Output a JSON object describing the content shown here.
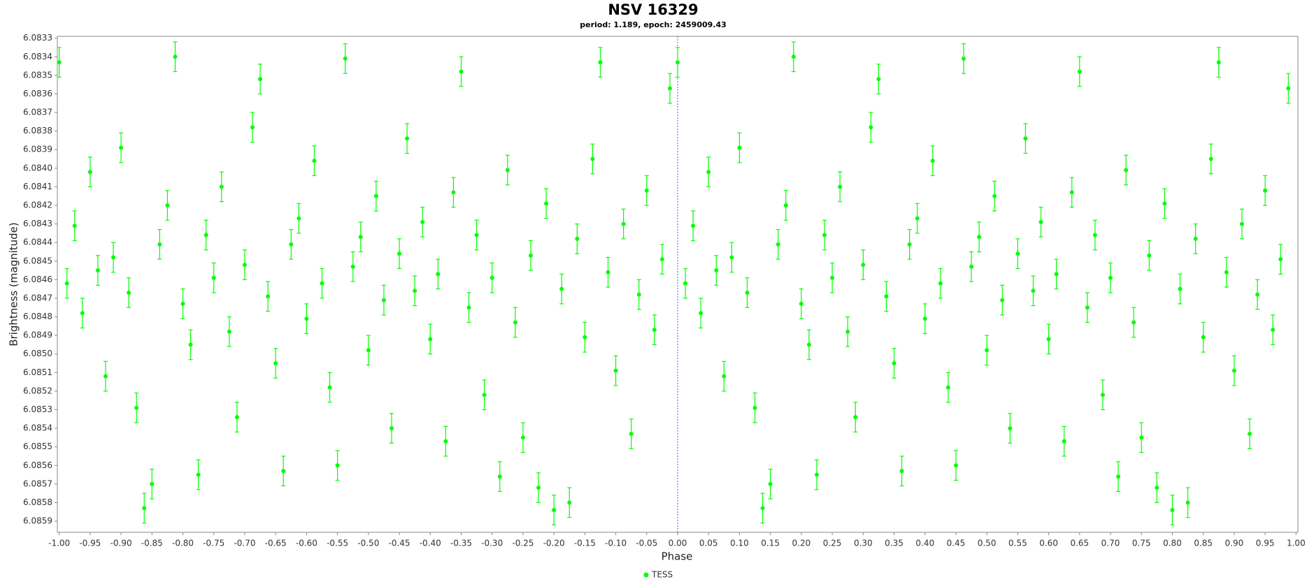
{
  "chart_data": {
    "type": "scatter",
    "title": "NSV 16329",
    "subtitle": "period: 1.189, epoch: 2459009.43",
    "x_label": "Phase",
    "y_label": "Brightness (magnitude)",
    "xlim": [
      -1.003,
      1.003
    ],
    "ylim": [
      6.08329,
      6.08596
    ],
    "y_inverted": true,
    "grid": false,
    "legend": "bottom",
    "reference_line_x": 0,
    "xticks": [
      {
        "value": -1,
        "label": "-1.00"
      },
      -0.95,
      {
        "value": -0.9,
        "label": "-0.90"
      },
      -0.85,
      {
        "value": -0.8,
        "label": "-0.80"
      },
      -0.75,
      {
        "value": -0.7,
        "label": "-0.70"
      },
      -0.65,
      {
        "value": -0.6,
        "label": "-0.60"
      },
      -0.55,
      {
        "value": -0.5,
        "label": "-0.50"
      },
      -0.45,
      {
        "value": -0.4,
        "label": "-0.40"
      },
      -0.35,
      {
        "value": -0.3,
        "label": "-0.30"
      },
      -0.25,
      {
        "value": -0.2,
        "label": "-0.20"
      },
      -0.15,
      {
        "value": -0.1,
        "label": "-0.10"
      },
      -0.05,
      {
        "value": 0,
        "label": "0.00"
      },
      0.05,
      {
        "value": 0.1,
        "label": "0.10"
      },
      0.15,
      {
        "value": 0.2,
        "label": "0.20"
      },
      0.25,
      {
        "value": 0.3,
        "label": "0.30"
      },
      0.35,
      {
        "value": 0.4,
        "label": "0.40"
      },
      0.45,
      {
        "value": 0.5,
        "label": "0.50"
      },
      0.55,
      {
        "value": 0.6,
        "label": "0.60"
      },
      0.65,
      {
        "value": 0.7,
        "label": "0.70"
      },
      0.75,
      {
        "value": 0.8,
        "label": "0.80"
      },
      0.85,
      {
        "value": 0.9,
        "label": "0.90"
      },
      0.95,
      {
        "value": 1,
        "label": "1.00"
      }
    ],
    "yticks": [
      6.0833,
      6.0834,
      6.0835,
      6.0836,
      6.0837,
      6.0838,
      6.0839,
      {
        "value": 6.084,
        "label": "6.0840"
      },
      6.0841,
      6.0842,
      6.0843,
      6.0844,
      6.0845,
      6.0846,
      6.0847,
      6.0848,
      6.0849,
      {
        "value": 6.085,
        "label": "6.0850"
      },
      6.0851,
      6.0852,
      6.0853,
      6.0854,
      6.0855,
      6.0856,
      6.0857,
      6.0858,
      6.0859
    ],
    "series": [
      {
        "name": "TESS",
        "color": "#00ff00",
        "error": 8e-05,
        "x": [
          -1,
          -0.9875,
          -0.975,
          -0.9625,
          -0.95,
          -0.9375,
          -0.925,
          -0.9125,
          -0.9,
          -0.8875,
          -0.875,
          -0.8625,
          -0.85,
          -0.8375,
          -0.825,
          -0.8125,
          -0.8,
          -0.7875,
          -0.775,
          -0.7625,
          -0.75,
          -0.7375,
          -0.725,
          -0.7125,
          -0.7,
          -0.6875,
          -0.675,
          -0.6625,
          -0.65,
          -0.6375,
          -0.625,
          -0.6125,
          -0.6,
          -0.5875,
          -0.575,
          -0.5625,
          -0.55,
          -0.5375,
          -0.525,
          -0.5125,
          -0.5,
          -0.4875,
          -0.475,
          -0.4625,
          -0.45,
          -0.4375,
          -0.425,
          -0.4125,
          -0.4,
          -0.3875,
          -0.375,
          -0.3625,
          -0.35,
          -0.3375,
          -0.325,
          -0.3125,
          -0.3,
          -0.2875,
          -0.275,
          -0.2625,
          -0.25,
          -0.2375,
          -0.225,
          -0.2125,
          -0.2,
          -0.1875,
          -0.175,
          -0.1625,
          -0.15,
          -0.1375,
          -0.125,
          -0.1125,
          -0.1,
          -0.0875,
          -0.075,
          -0.0625,
          -0.05,
          -0.0375,
          -0.025,
          -0.0125,
          0,
          0.0125,
          0.025,
          0.0375,
          0.05,
          0.0625,
          0.075,
          0.0875,
          0.1,
          0.1125,
          0.125,
          0.1375,
          0.15,
          0.1625,
          0.175,
          0.1875,
          0.2,
          0.2125,
          0.225,
          0.2375,
          0.25,
          0.2625,
          0.275,
          0.2875,
          0.3,
          0.3125,
          0.325,
          0.3375,
          0.35,
          0.3625,
          0.375,
          0.3875,
          0.4,
          0.4125,
          0.425,
          0.4375,
          0.45,
          0.4625,
          0.475,
          0.4875,
          0.5,
          0.5125,
          0.525,
          0.5375,
          0.55,
          0.5625,
          0.575,
          0.5875,
          0.6,
          0.6125,
          0.625,
          0.6375,
          0.65,
          0.6625,
          0.675,
          0.6875,
          0.7,
          0.7125,
          0.725,
          0.7375,
          0.75,
          0.7625,
          0.775,
          0.7875,
          0.8,
          0.8125,
          0.825,
          0.8375,
          0.85,
          0.8625,
          0.875,
          0.8875,
          0.9,
          0.9125,
          0.925,
          0.9375,
          0.95,
          0.9625,
          0.975,
          0.9875
        ],
        "values": [
          6.08343,
          6.08462,
          6.08431,
          6.08478,
          6.08402,
          6.08455,
          6.08512,
          6.08448,
          6.08389,
          6.08467,
          6.08529,
          6.08583,
          6.0857,
          6.08441,
          6.0842,
          6.0834,
          6.08473,
          6.08495,
          6.08565,
          6.08436,
          6.08459,
          6.0841,
          6.08488,
          6.08534,
          6.08452,
          6.08378,
          6.08352,
          6.08469,
          6.08505,
          6.08563,
          6.08441,
          6.08427,
          6.08481,
          6.08396,
          6.08462,
          6.08518,
          6.0856,
          6.08341,
          6.08453,
          6.08437,
          6.08498,
          6.08415,
          6.08471,
          6.0854,
          6.08446,
          6.08384,
          6.08466,
          6.08429,
          6.08492,
          6.08457,
          6.08547,
          6.08413,
          6.08348,
          6.08475,
          6.08436,
          6.08522,
          6.08459,
          6.08566,
          6.08401,
          6.08483,
          6.08545,
          6.08447,
          6.08572,
          6.08419,
          6.08584,
          6.08465,
          6.0858,
          6.08438,
          6.08491,
          6.08395,
          6.08343,
          6.08456,
          6.08509,
          6.0843,
          6.08543,
          6.08468,
          6.08412,
          6.08487,
          6.08449,
          6.08357,
          6.08343,
          6.08462,
          6.08431,
          6.08478,
          6.08402,
          6.08455,
          6.08512,
          6.08448,
          6.08389,
          6.08467,
          6.08529,
          6.08583,
          6.0857,
          6.08441,
          6.0842,
          6.0834,
          6.08473,
          6.08495,
          6.08565,
          6.08436,
          6.08459,
          6.0841,
          6.08488,
          6.08534,
          6.08452,
          6.08378,
          6.08352,
          6.08469,
          6.08505,
          6.08563,
          6.08441,
          6.08427,
          6.08481,
          6.08396,
          6.08462,
          6.08518,
          6.0856,
          6.08341,
          6.08453,
          6.08437,
          6.08498,
          6.08415,
          6.08471,
          6.0854,
          6.08446,
          6.08384,
          6.08466,
          6.08429,
          6.08492,
          6.08457,
          6.08547,
          6.08413,
          6.08348,
          6.08475,
          6.08436,
          6.08522,
          6.08459,
          6.08566,
          6.08401,
          6.08483,
          6.08545,
          6.08447,
          6.08572,
          6.08419,
          6.08584,
          6.08465,
          6.0858,
          6.08438,
          6.08491,
          6.08395,
          6.08343,
          6.08456,
          6.08509,
          6.0843,
          6.08543,
          6.08468,
          6.08412,
          6.08487,
          6.08449,
          6.08357
        ]
      }
    ]
  }
}
